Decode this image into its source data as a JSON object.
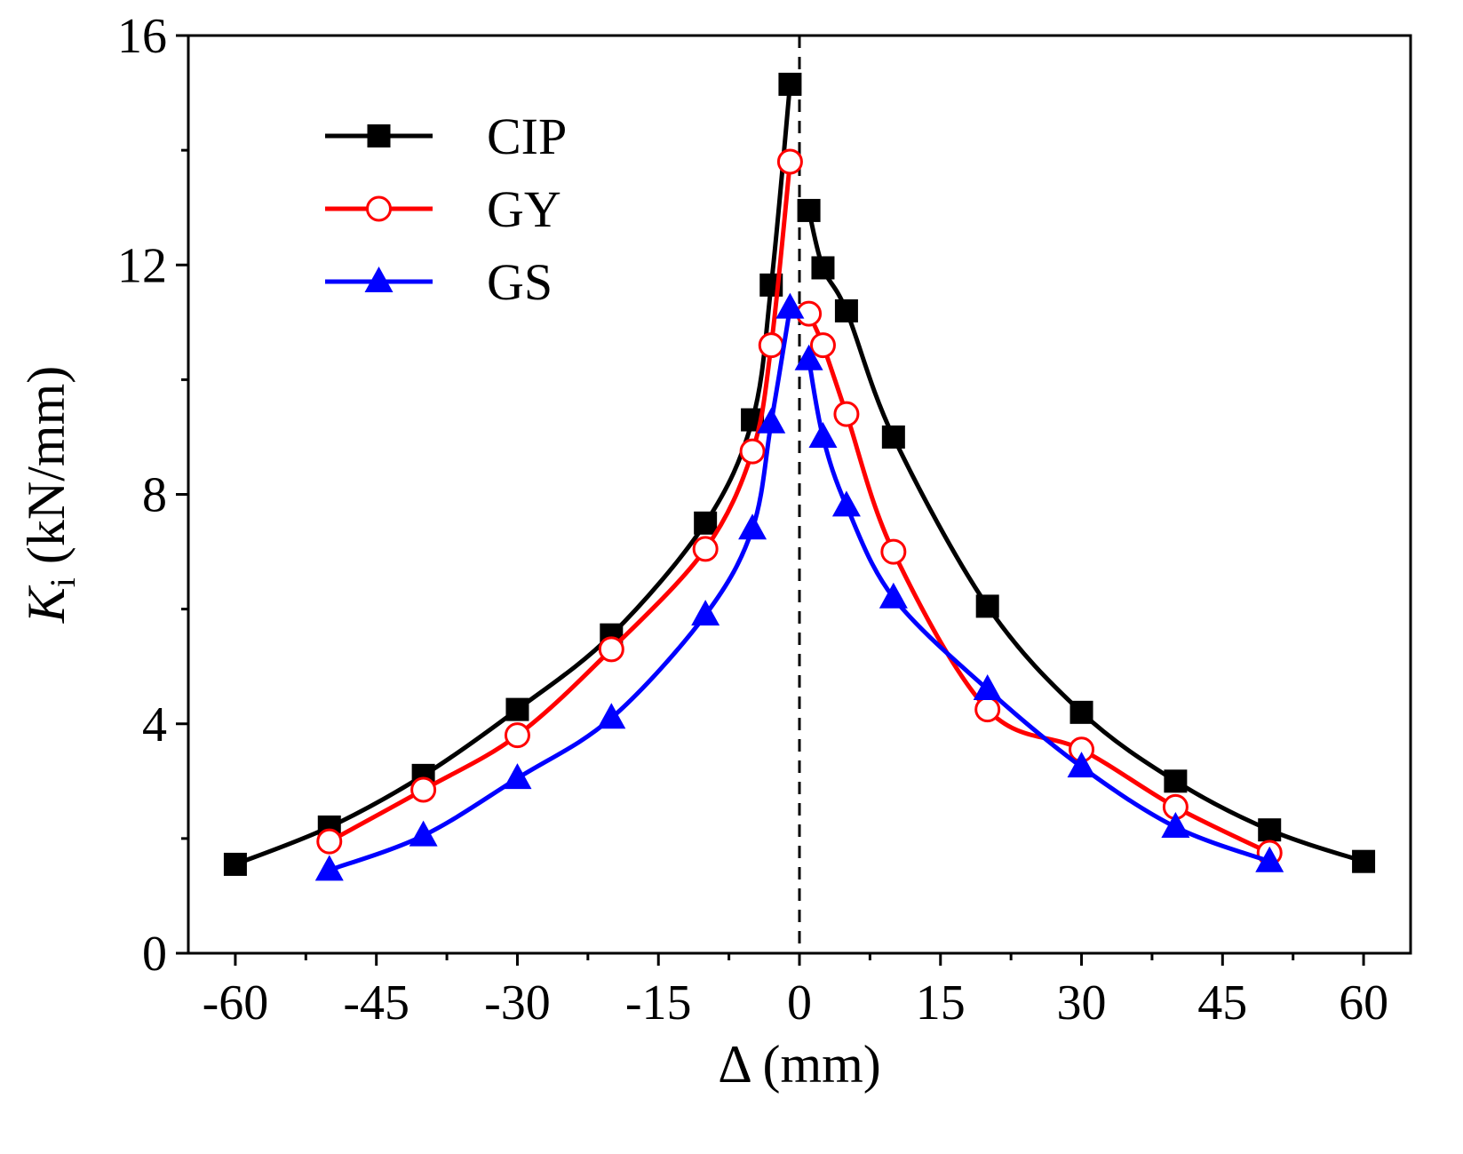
{
  "chart_data": {
    "type": "line",
    "xlabel": "Δ (mm)",
    "ylabel": {
      "symbol": "K",
      "subscript": "i",
      "unit": " (kN/mm)"
    },
    "xlim": [
      -65,
      65
    ],
    "ylim": [
      0,
      16
    ],
    "xticks": [
      -60,
      -45,
      -30,
      -15,
      0,
      15,
      30,
      45,
      60
    ],
    "xtick_labels": [
      "-60",
      "-45",
      "-30",
      "-15",
      "0",
      "15",
      "30",
      "45",
      "60"
    ],
    "yticks": [
      0,
      4,
      8,
      12,
      16
    ],
    "ytick_labels": [
      "0",
      "4",
      "8",
      "12",
      "16"
    ],
    "grid": false,
    "reference_line": {
      "x": 0,
      "style": "dashed"
    },
    "legend_position": "top-left",
    "series": [
      {
        "name": "CIP",
        "color": "#000000",
        "marker": "square-filled",
        "points": [
          [
            -60,
            1.55
          ],
          [
            -50,
            2.2
          ],
          [
            -40,
            3.1
          ],
          [
            -30,
            4.25
          ],
          [
            -20,
            5.55
          ],
          [
            -10,
            7.5
          ],
          [
            -5,
            9.3
          ],
          [
            -3,
            11.65
          ],
          [
            -1,
            15.15
          ],
          [
            1,
            12.95
          ],
          [
            2.5,
            11.95
          ],
          [
            5,
            11.2
          ],
          [
            10,
            9.0
          ],
          [
            20,
            6.05
          ],
          [
            30,
            4.2
          ],
          [
            40,
            3.0
          ],
          [
            50,
            2.15
          ],
          [
            60,
            1.6
          ]
        ]
      },
      {
        "name": "GY",
        "color": "#ff0000",
        "marker": "circle-open",
        "points": [
          [
            -50,
            1.95
          ],
          [
            -40,
            2.85
          ],
          [
            -30,
            3.8
          ],
          [
            -20,
            5.3
          ],
          [
            -10,
            7.05
          ],
          [
            -5,
            8.75
          ],
          [
            -3,
            10.6
          ],
          [
            -1,
            13.8
          ],
          [
            1,
            11.15
          ],
          [
            2.5,
            10.6
          ],
          [
            5,
            9.4
          ],
          [
            10,
            7.0
          ],
          [
            20,
            4.25
          ],
          [
            30,
            3.55
          ],
          [
            40,
            2.55
          ],
          [
            50,
            1.75
          ]
        ]
      },
      {
        "name": "GS",
        "color": "#0000ff",
        "marker": "triangle-filled",
        "points": [
          [
            -50,
            1.45
          ],
          [
            -40,
            2.05
          ],
          [
            -30,
            3.05
          ],
          [
            -20,
            4.1
          ],
          [
            -10,
            5.9
          ],
          [
            -5,
            7.4
          ],
          [
            -3,
            9.25
          ],
          [
            -1,
            11.25
          ],
          [
            1,
            10.35
          ],
          [
            2.5,
            9.0
          ],
          [
            5,
            7.8
          ],
          [
            10,
            6.2
          ],
          [
            20,
            4.6
          ],
          [
            30,
            3.25
          ],
          [
            40,
            2.2
          ],
          [
            50,
            1.6
          ]
        ]
      }
    ]
  }
}
